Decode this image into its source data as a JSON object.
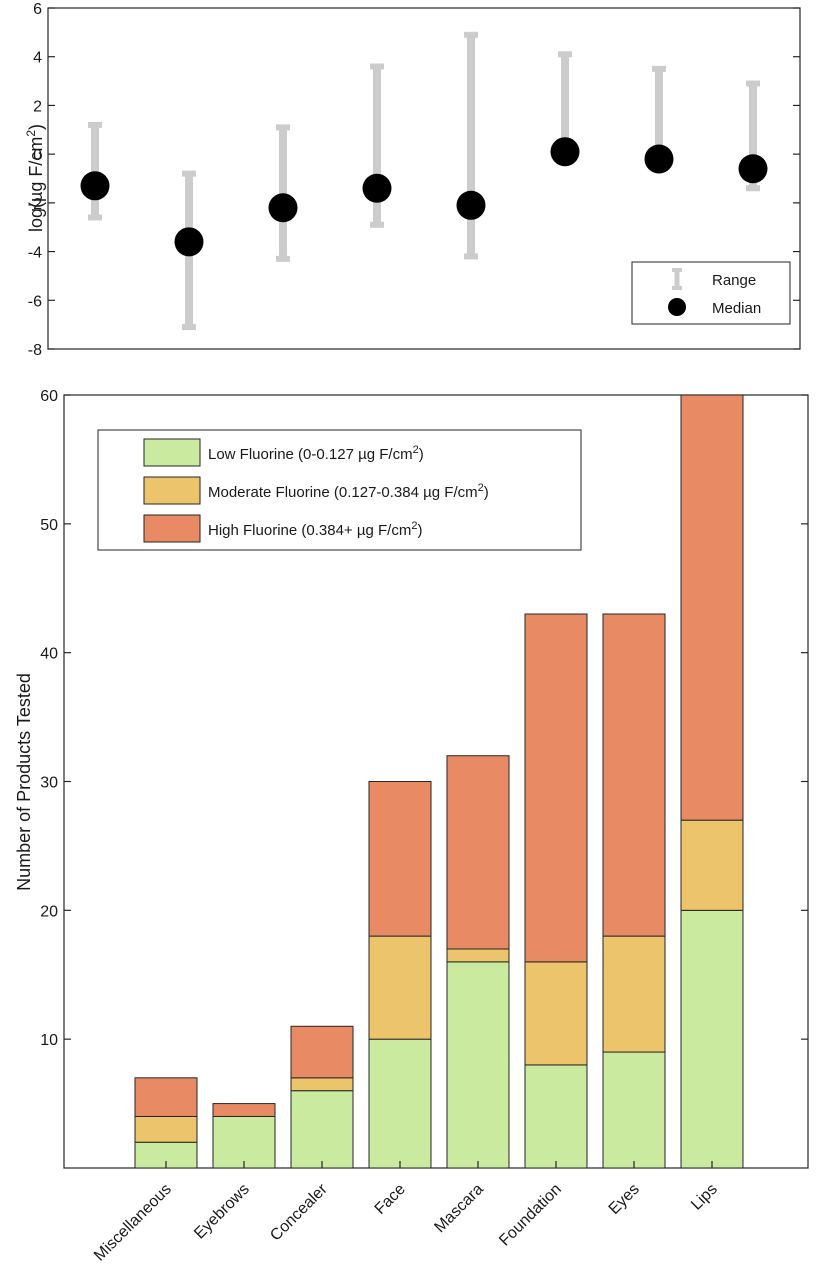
{
  "colors": {
    "low": "#c9ea9f",
    "moderate": "#ecc46b",
    "high": "#e88b65",
    "range": "#cccccc",
    "median": "#000000"
  },
  "chart_data": [
    {
      "type": "scatter",
      "categories": [
        "Miscellaneous",
        "Eyebrows",
        "Concealer",
        "Face",
        "Mascara",
        "Foundation",
        "Eyes",
        "Lips"
      ],
      "ylabel_main": "log(µg F/cm",
      "ylabel_sup": "2",
      "ylabel_tail": ")",
      "ylim": [
        -8,
        6
      ],
      "yticks": [
        6,
        4,
        2,
        0,
        -2,
        -4,
        -6,
        -8
      ],
      "xlim": [
        0.5,
        8.5
      ],
      "series": [
        {
          "name": "Range",
          "low": [
            -2.6,
            -7.1,
            -4.3,
            -2.9,
            -4.2,
            0.1,
            -0.2,
            -1.4
          ],
          "high": [
            1.2,
            -0.8,
            1.1,
            3.6,
            4.9,
            4.1,
            3.5,
            2.9
          ]
        },
        {
          "name": "Median",
          "values": [
            -1.3,
            -3.6,
            -2.2,
            -1.4,
            -2.1,
            0.1,
            -0.2,
            -0.6
          ]
        }
      ],
      "legend": [
        {
          "key": "range",
          "label": "Range"
        },
        {
          "key": "median",
          "label": "Median"
        }
      ],
      "legend_position": "bottom-right",
      "grid": false
    },
    {
      "type": "bar",
      "stacked": true,
      "categories": [
        "Miscellaneous",
        "Eyebrows",
        "Concealer",
        "Face",
        "Mascara",
        "Foundation",
        "Eyes",
        "Lips"
      ],
      "ylabel": "Number of Products Tested",
      "ylim": [
        0,
        60
      ],
      "yticks": [
        10,
        20,
        30,
        40,
        50,
        60
      ],
      "series": [
        {
          "name": "Low Fluorine",
          "values": [
            2,
            4,
            6,
            10,
            16,
            8,
            9,
            20
          ]
        },
        {
          "name": "Moderate Fluorine",
          "values": [
            2,
            0,
            1,
            8,
            1,
            8,
            9,
            7
          ]
        },
        {
          "name": "High Fluorine",
          "values": [
            3,
            1,
            4,
            12,
            15,
            27,
            25,
            33
          ]
        }
      ],
      "legend": [
        {
          "key": "low",
          "label": "Low Fluorine (0-0.127 µg F/cm",
          "sup": "2",
          "tail": ")"
        },
        {
          "key": "moderate",
          "label": "Moderate Fluorine (0.127-0.384 µg F/cm",
          "sup": "2",
          "tail": ")"
        },
        {
          "key": "high",
          "label": "High Fluorine (0.384+ µg F/cm",
          "sup": "2",
          "tail": ")"
        }
      ],
      "legend_position": "top-left",
      "grid": false
    }
  ]
}
